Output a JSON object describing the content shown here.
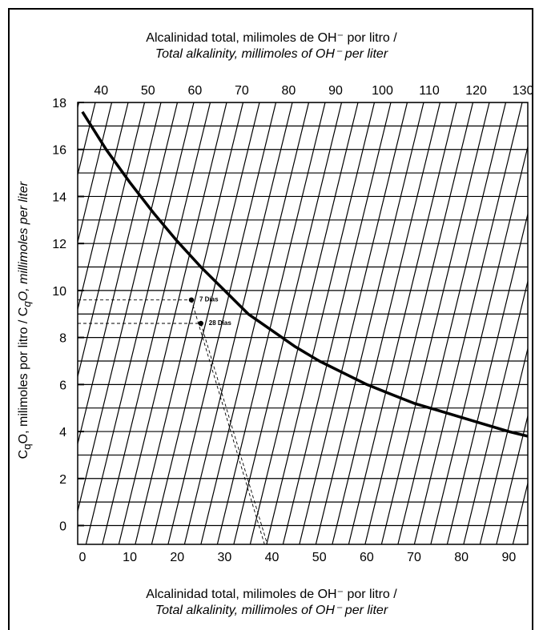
{
  "chart_data": {
    "type": "line",
    "title_top_line1": "Alcalinidad total, milimoles de OH⁻ por litro /",
    "title_top_line2": "Total alkalinity, millimoles of OH⁻ per liter",
    "xlabel_bottom_line1": "Alcalinidad total, milimoles de OH⁻ por litro /",
    "xlabel_bottom_line2": "Total alkalinity, millimoles of OH⁻ per liter",
    "ylabel_part1": "C",
    "ylabel_sub1": "q",
    "ylabel_part2": "O, milimoles por litro / C",
    "ylabel_sub2": "q",
    "ylabel_part3": "O,  millimoles per liter",
    "x_bottom": {
      "range": [
        -1,
        94
      ],
      "ticks": [
        0,
        10,
        20,
        30,
        40,
        50,
        60,
        70,
        80,
        90
      ]
    },
    "x_top": {
      "range": [
        35,
        131
      ],
      "ticks": [
        40,
        50,
        60,
        70,
        80,
        90,
        100,
        110,
        120,
        130
      ]
    },
    "y": {
      "range": [
        -0.8,
        18
      ],
      "ticks": [
        0,
        2,
        4,
        6,
        8,
        10,
        12,
        14,
        16,
        18
      ],
      "grid_step": 1
    },
    "grid": true,
    "series": [
      {
        "x": [
          0,
          5,
          10,
          15,
          20,
          25,
          30,
          35,
          40,
          45,
          50,
          55,
          60,
          65,
          70,
          75,
          80,
          85,
          90,
          94
        ],
        "y": [
          17.6,
          16.0,
          14.6,
          13.3,
          12.1,
          11.0,
          10.0,
          9.0,
          8.3,
          7.6,
          7.0,
          6.5,
          6.0,
          5.6,
          5.2,
          4.9,
          4.6,
          4.3,
          4.0,
          3.8
        ]
      }
    ],
    "points": [
      {
        "label": "7 Días",
        "x": 23,
        "y": 9.6
      },
      {
        "label": "28 Días",
        "x": 25,
        "y": 8.6
      }
    ]
  }
}
